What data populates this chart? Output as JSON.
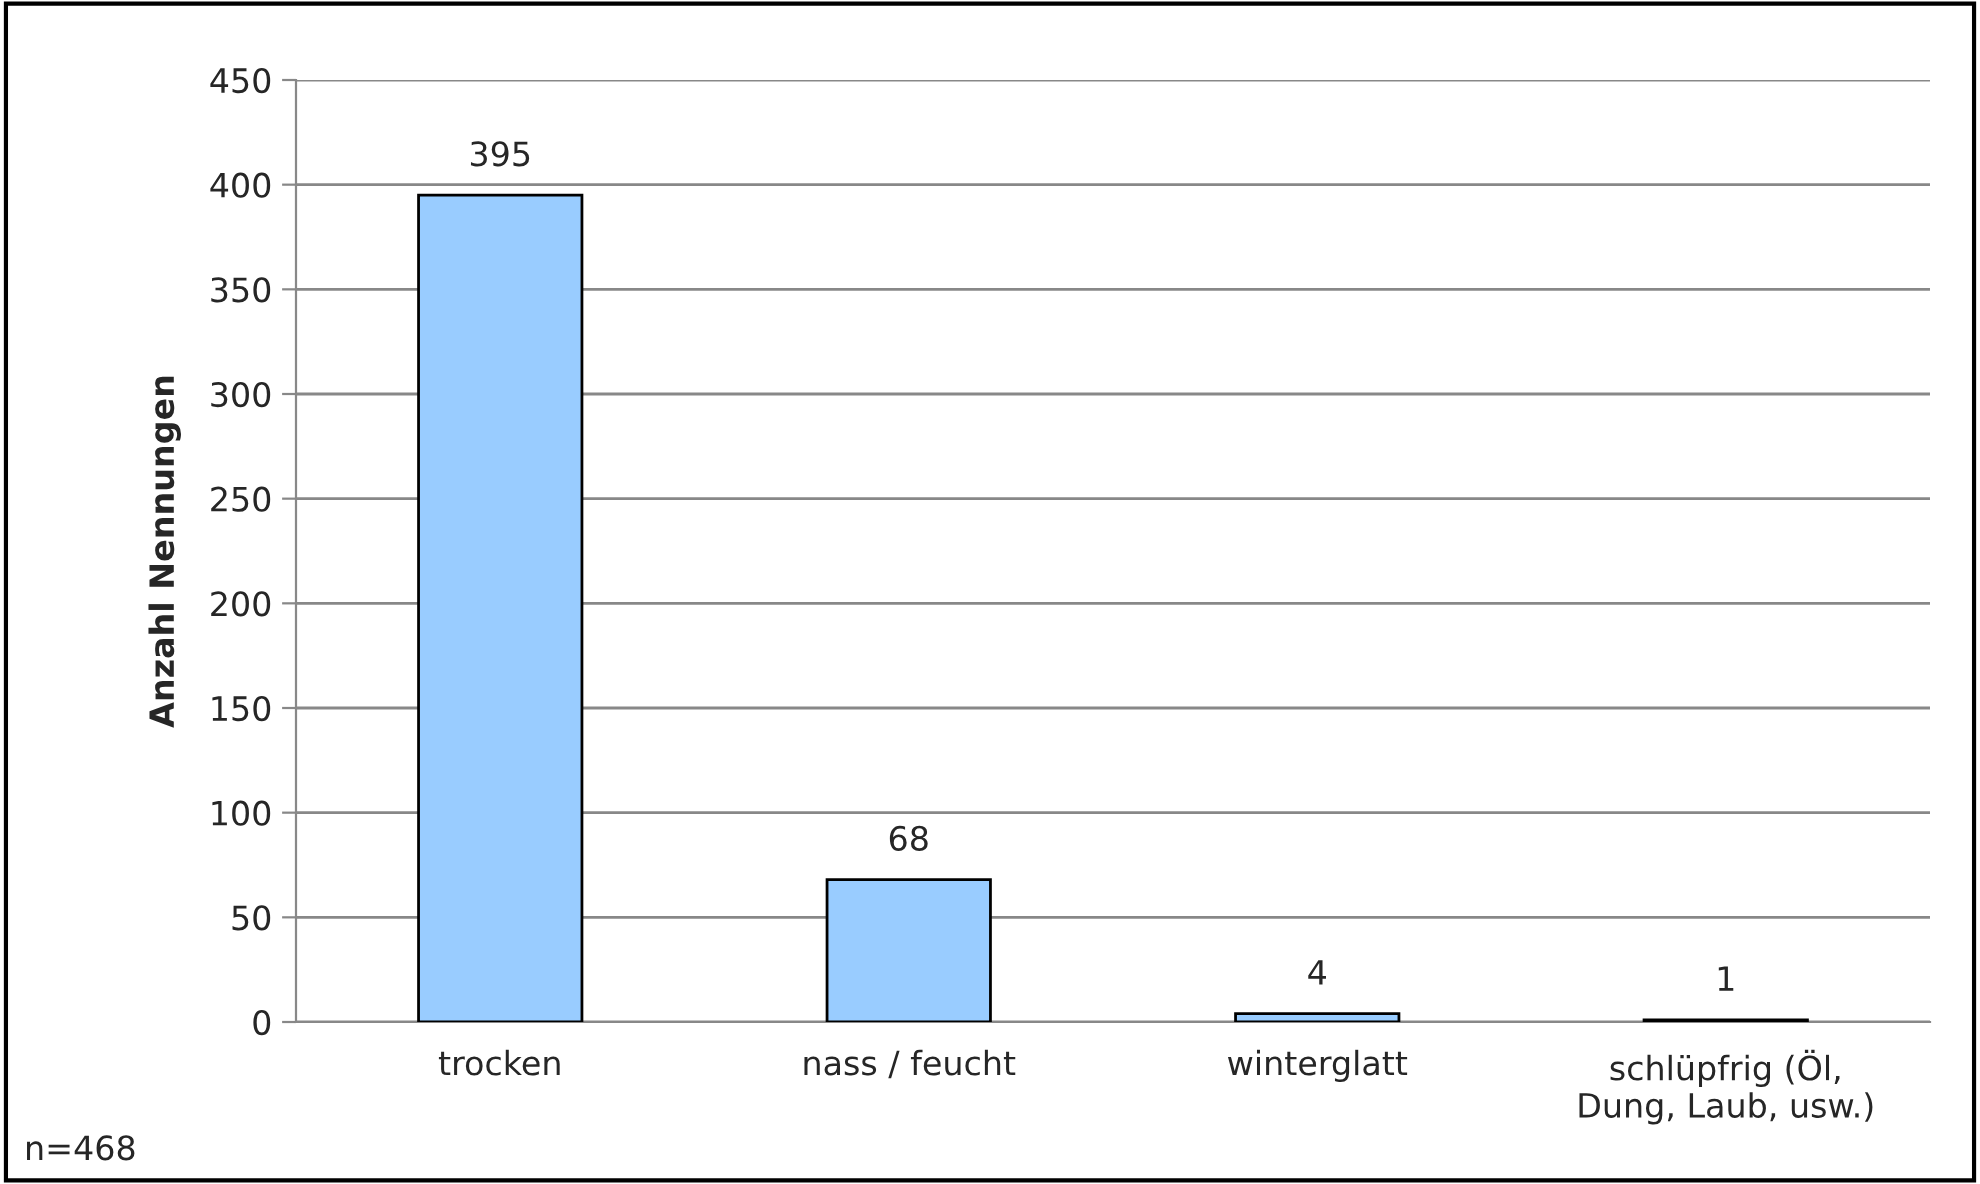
{
  "chart_data": {
    "type": "bar",
    "ylabel": "Anzahl Nennungen",
    "categories": [
      "trocken",
      "nass / feucht",
      "winterglatt",
      "schlüpfrig (Öl,\nDung, Laub, usw.)"
    ],
    "values": [
      395,
      68,
      4,
      1
    ],
    "color": "#99ccff",
    "ylim": [
      0,
      450
    ],
    "yticks": [
      0,
      50,
      100,
      150,
      200,
      250,
      300,
      350,
      400,
      450
    ],
    "grid": "y",
    "data_labels": true,
    "legend": false,
    "annotations": [
      "n=468"
    ]
  }
}
